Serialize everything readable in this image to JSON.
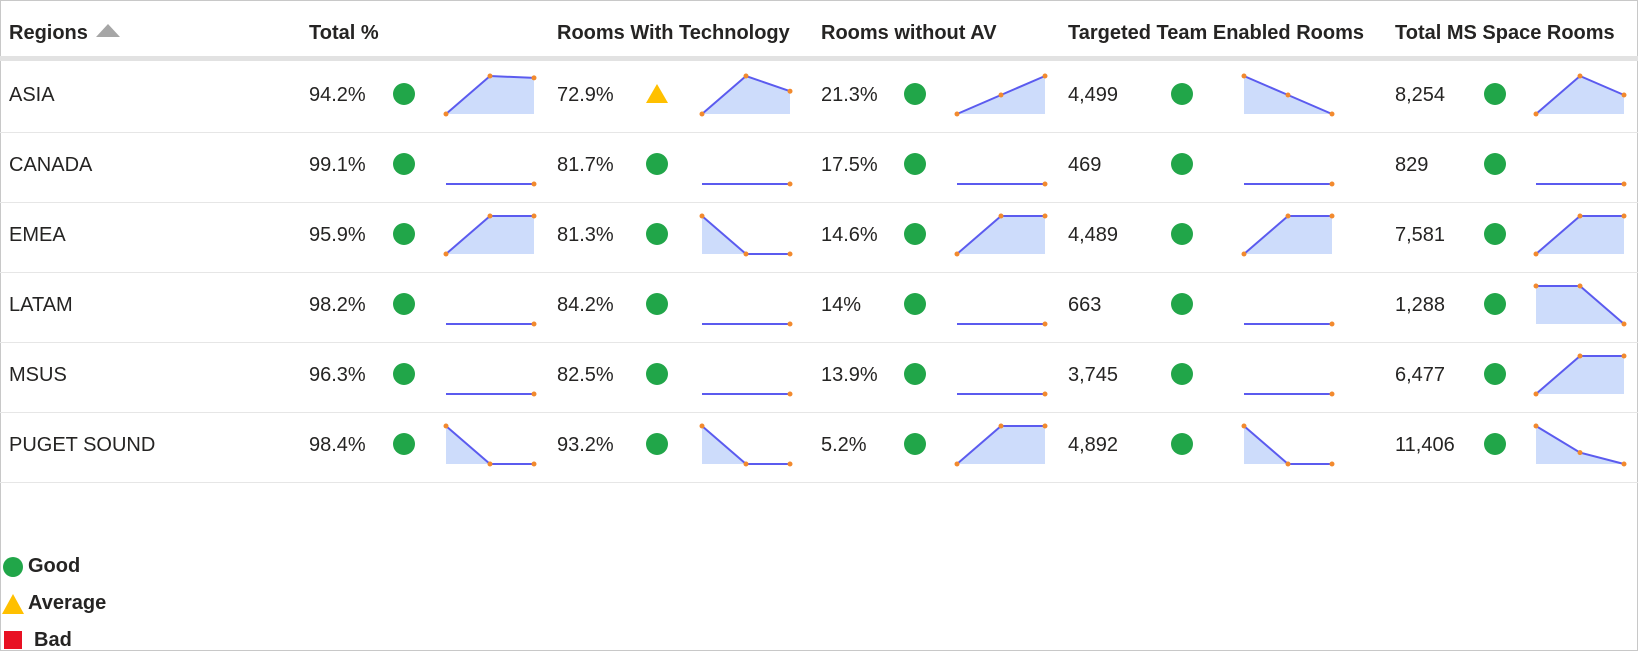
{
  "table": {
    "headers": [
      "Regions",
      "Total %",
      "Rooms With Technology",
      "Rooms without AV",
      "Targeted Team Enabled Rooms",
      "Total MS Space Rooms"
    ],
    "rows": [
      {
        "region": "ASIA",
        "cells": [
          {
            "value": "94.2%",
            "status": "good",
            "trend": [
              0,
              100,
              95
            ]
          },
          {
            "value": "72.9%",
            "status": "average",
            "trend": [
              0,
              100,
              60
            ]
          },
          {
            "value": "21.3%",
            "status": "good",
            "trend": [
              0,
              50,
              100
            ]
          },
          {
            "value": "4,499",
            "status": "good",
            "trend": [
              100,
              50,
              0
            ]
          },
          {
            "value": "8,254",
            "status": "good",
            "trend": [
              0,
              100,
              50
            ]
          }
        ]
      },
      {
        "region": "CANADA",
        "cells": [
          {
            "value": "99.1%",
            "status": "good",
            "trend": [
              0,
              0,
              0
            ]
          },
          {
            "value": "81.7%",
            "status": "good",
            "trend": [
              0,
              0,
              0
            ]
          },
          {
            "value": "17.5%",
            "status": "good",
            "trend": [
              0,
              0,
              0
            ]
          },
          {
            "value": "469",
            "status": "good",
            "trend": [
              0,
              0,
              0
            ]
          },
          {
            "value": "829",
            "status": "good",
            "trend": [
              0,
              0,
              0
            ]
          }
        ]
      },
      {
        "region": "EMEA",
        "cells": [
          {
            "value": "95.9%",
            "status": "good",
            "trend": [
              0,
              100,
              100
            ]
          },
          {
            "value": "81.3%",
            "status": "good",
            "trend": [
              100,
              0,
              0
            ]
          },
          {
            "value": "14.6%",
            "status": "good",
            "trend": [
              0,
              100,
              100
            ]
          },
          {
            "value": "4,489",
            "status": "good",
            "trend": [
              0,
              100,
              100
            ]
          },
          {
            "value": "7,581",
            "status": "good",
            "trend": [
              0,
              100,
              100
            ]
          }
        ]
      },
      {
        "region": "LATAM",
        "cells": [
          {
            "value": "98.2%",
            "status": "good",
            "trend": [
              0,
              0,
              0
            ]
          },
          {
            "value": "84.2%",
            "status": "good",
            "trend": [
              0,
              0,
              0
            ]
          },
          {
            "value": "14%",
            "status": "good",
            "trend": [
              0,
              0,
              0
            ]
          },
          {
            "value": "663",
            "status": "good",
            "trend": [
              0,
              0,
              0
            ]
          },
          {
            "value": "1,288",
            "status": "good",
            "trend": [
              100,
              100,
              0
            ]
          }
        ]
      },
      {
        "region": "MSUS",
        "cells": [
          {
            "value": "96.3%",
            "status": "good",
            "trend": [
              0,
              0,
              0
            ]
          },
          {
            "value": "82.5%",
            "status": "good",
            "trend": [
              0,
              0,
              0
            ]
          },
          {
            "value": "13.9%",
            "status": "good",
            "trend": [
              0,
              0,
              0
            ]
          },
          {
            "value": "3,745",
            "status": "good",
            "trend": [
              0,
              0,
              0
            ]
          },
          {
            "value": "6,477",
            "status": "good",
            "trend": [
              0,
              100,
              100
            ]
          }
        ]
      },
      {
        "region": "PUGET SOUND",
        "cells": [
          {
            "value": "98.4%",
            "status": "good",
            "trend": [
              100,
              0,
              0
            ]
          },
          {
            "value": "93.2%",
            "status": "good",
            "trend": [
              100,
              0,
              0
            ]
          },
          {
            "value": "5.2%",
            "status": "good",
            "trend": [
              0,
              100,
              100
            ]
          },
          {
            "value": "4,892",
            "status": "good",
            "trend": [
              100,
              0,
              0
            ]
          },
          {
            "value": "11,406",
            "status": "good",
            "trend": [
              100,
              30,
              0
            ]
          }
        ]
      }
    ]
  },
  "legend": {
    "good": "Good",
    "average": "Average",
    "bad": "Bad"
  },
  "colors": {
    "good": "#21a649",
    "average": "#ffc000",
    "bad": "#e81123",
    "spark_line": "#5b5bef",
    "spark_fill": "#cddcfb",
    "spark_marker": "#f28a2e"
  }
}
